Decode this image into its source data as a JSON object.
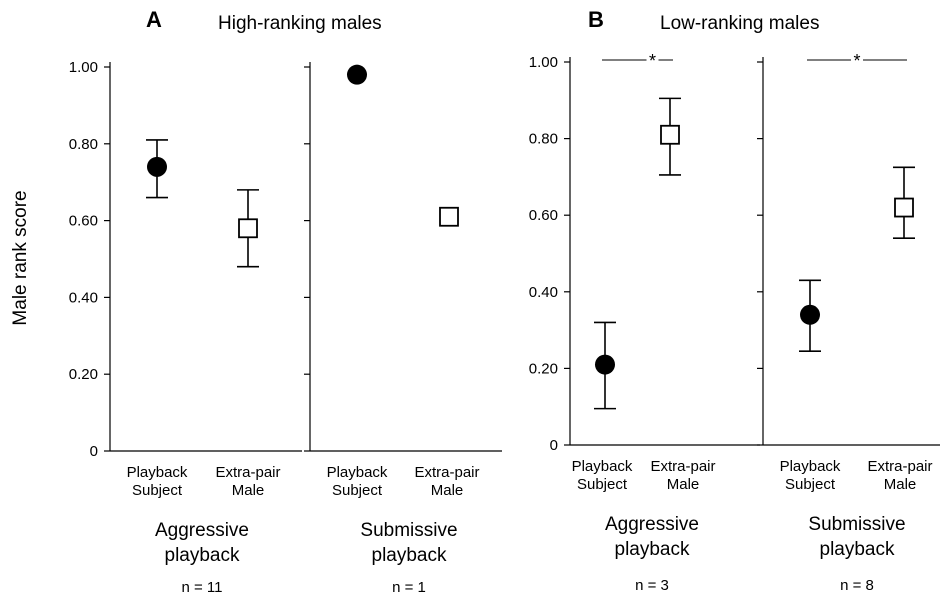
{
  "figure": {
    "ylabel": "Male rank score",
    "panels": [
      {
        "letter": "A",
        "title": "High-ranking males"
      },
      {
        "letter": "B",
        "title": "Low-ranking males"
      }
    ]
  },
  "chart_data": [
    {
      "type": "scatter",
      "panel": "A",
      "condition": [
        "Aggressive",
        "playback"
      ],
      "n_label": "n = 11",
      "ylabel": "Male rank score",
      "ylim": [
        0,
        1
      ],
      "yticks": [
        "0",
        "0.20",
        "0.40",
        "0.60",
        "0.80",
        "1.00"
      ],
      "categories": [
        [
          "Playback",
          "Subject"
        ],
        [
          "Extra-pair",
          "Male"
        ]
      ],
      "markers": [
        "filled-circle",
        "open-square"
      ],
      "values": [
        0.74,
        0.58
      ],
      "error": [
        [
          0.66,
          0.81
        ],
        [
          0.48,
          0.68
        ]
      ],
      "significance": ""
    },
    {
      "type": "scatter",
      "panel": "A",
      "condition": [
        "Submissive",
        "playback"
      ],
      "n_label": "n = 1",
      "ylim": [
        0,
        1
      ],
      "categories": [
        [
          "Playback",
          "Subject"
        ],
        [
          "Extra-pair",
          "Male"
        ]
      ],
      "markers": [
        "filled-circle",
        "open-square"
      ],
      "values": [
        0.98,
        0.61
      ],
      "error": [
        null,
        null
      ],
      "significance": ""
    },
    {
      "type": "scatter",
      "panel": "B",
      "condition": [
        "Aggressive",
        "playback"
      ],
      "n_label": "n = 3",
      "ylim": [
        0,
        1
      ],
      "yticks": [
        "0",
        "0.20",
        "0.40",
        "0.60",
        "0.80",
        "1.00"
      ],
      "categories": [
        [
          "Playback",
          "Subject"
        ],
        [
          "Extra-pair",
          "Male"
        ]
      ],
      "markers": [
        "filled-circle",
        "open-square"
      ],
      "values": [
        0.21,
        0.81
      ],
      "error": [
        [
          0.095,
          0.32
        ],
        [
          0.705,
          0.905
        ]
      ],
      "significance": "*"
    },
    {
      "type": "scatter",
      "panel": "B",
      "condition": [
        "Submissive",
        "playback"
      ],
      "n_label": "n = 8",
      "ylim": [
        0,
        1
      ],
      "categories": [
        [
          "Playback",
          "Subject"
        ],
        [
          "Extra-pair",
          "Male"
        ]
      ],
      "markers": [
        "filled-circle",
        "open-square"
      ],
      "values": [
        0.34,
        0.62
      ],
      "error": [
        [
          0.245,
          0.43
        ],
        [
          0.54,
          0.725
        ]
      ],
      "significance": "*"
    }
  ]
}
